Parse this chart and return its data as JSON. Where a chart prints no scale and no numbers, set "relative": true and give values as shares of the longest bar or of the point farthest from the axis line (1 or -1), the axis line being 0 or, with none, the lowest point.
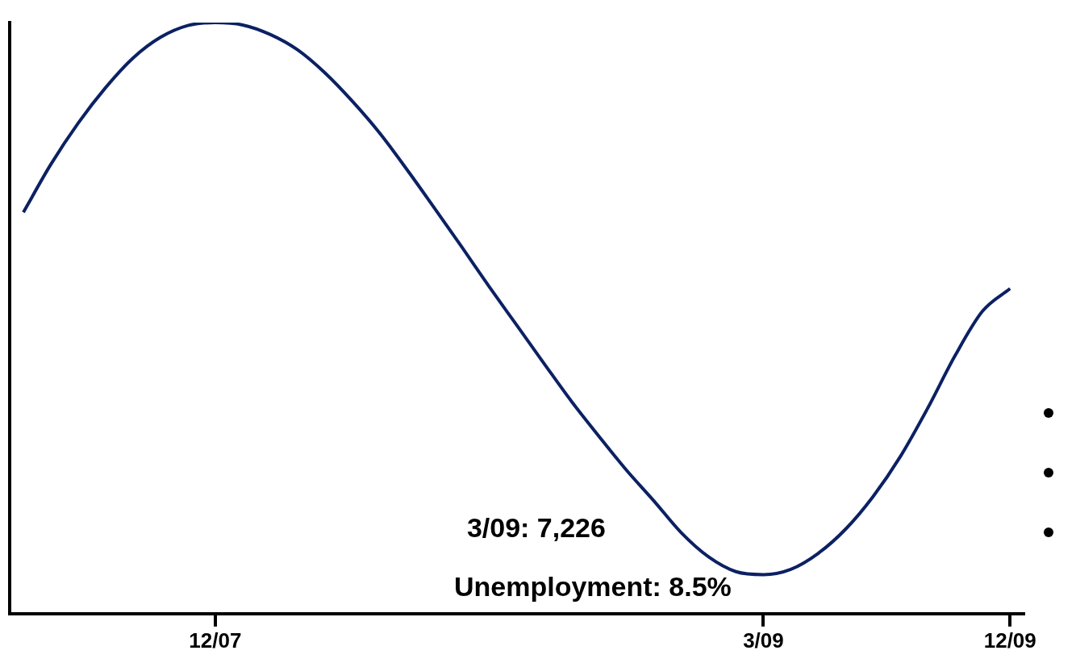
{
  "chart_data": {
    "type": "line",
    "relative": true,
    "categories": [
      null,
      null,
      null,
      null,
      null,
      null,
      null,
      "12/07",
      null,
      null,
      null,
      null,
      null,
      null,
      null,
      null,
      null,
      null,
      null,
      null,
      null,
      null,
      null,
      null,
      null,
      null,
      null,
      "3/09",
      null,
      null,
      null,
      null,
      null,
      null,
      null,
      null,
      "12/09"
    ],
    "series": [
      {
        "color": "#0c2163",
        "values": [
          0.679,
          0.76,
          0.83,
          0.89,
          0.94,
          0.975,
          0.995,
          1.0,
          0.996,
          0.98,
          0.954,
          0.915,
          0.867,
          0.813,
          0.751,
          0.686,
          0.62,
          0.553,
          0.488,
          0.423,
          0.359,
          0.3,
          0.243,
          0.191,
          0.137,
          0.096,
          0.071,
          0.066,
          0.075,
          0.102,
          0.143,
          0.198,
          0.266,
          0.348,
          0.437,
          0.512,
          0.55
        ]
      }
    ],
    "annotations": [
      "3/09: 7,226",
      "Unemployment: 8.5%"
    ],
    "marker": "none",
    "line_style": "solid",
    "grid": false,
    "legend": false
  }
}
